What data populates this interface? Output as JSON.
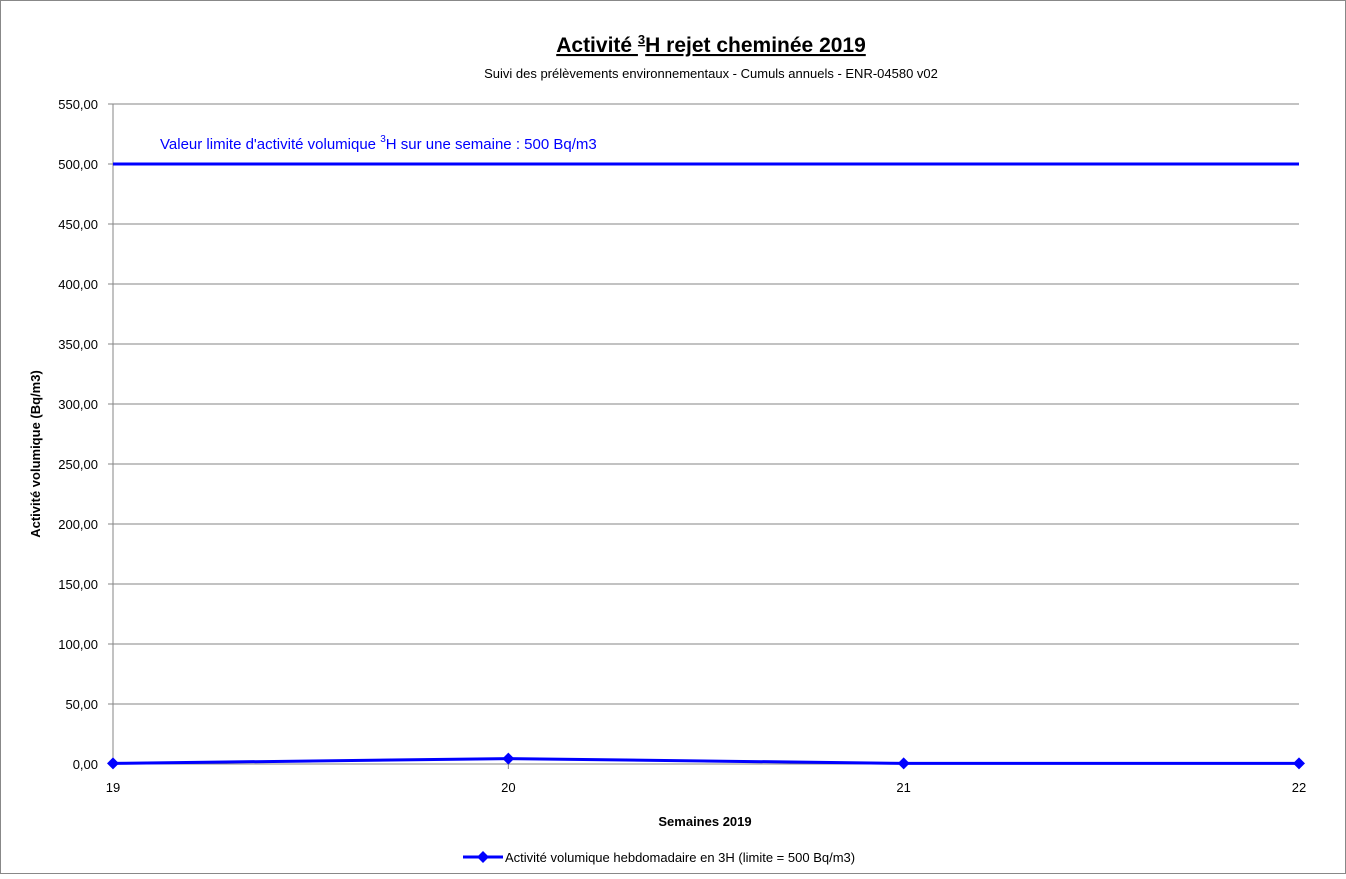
{
  "chart_data": {
    "type": "line",
    "title_prefix": "Activité ",
    "title_sup": "3",
    "title_suffix": "H rejet cheminée 2019",
    "subtitle": "Suivi des prélèvements environnementaux - Cumuls annuels - ENR-04580 v02",
    "xlabel": "Semaines 2019",
    "ylabel": "Activité volumique (Bq/m3)",
    "x": [
      19,
      20,
      21,
      22
    ],
    "x_tick_labels": [
      "19",
      "20",
      "21",
      "22"
    ],
    "y_tick_labels": [
      "0,00",
      "50,00",
      "100,00",
      "150,00",
      "200,00",
      "250,00",
      "300,00",
      "350,00",
      "400,00",
      "450,00",
      "500,00",
      "550,00"
    ],
    "ylim": [
      0,
      550
    ],
    "y_step": 50,
    "grid": true,
    "series": [
      {
        "name": "Activité volumique hebdomadaire en 3H  (limite = 500 Bq/m3)",
        "values": [
          0.5,
          4.5,
          0.5,
          0.5
        ],
        "color": "#0000ff",
        "marker": "diamond"
      }
    ],
    "limit_line": {
      "value": 500,
      "color": "#0000ff",
      "annotation_prefix": "Valeur limite d'activité volumique ",
      "annotation_sup": "3",
      "annotation_suffix": "H  sur une semaine : 500 Bq/m3"
    },
    "legend_position": "bottom"
  }
}
